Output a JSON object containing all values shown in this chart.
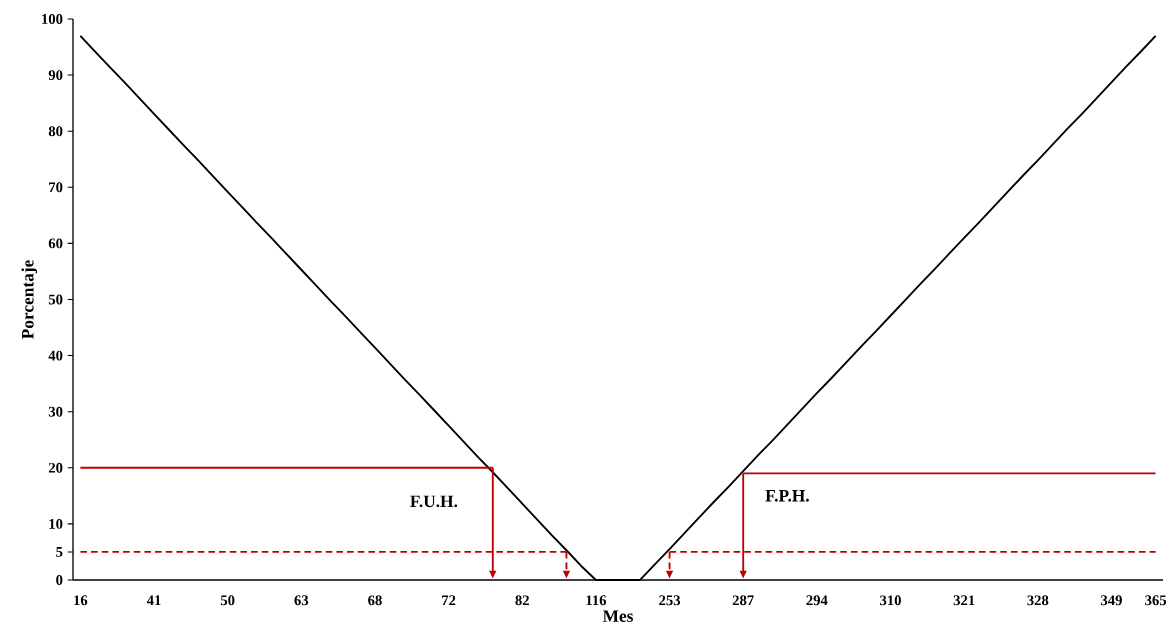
{
  "chart_data": {
    "type": "line",
    "xlabel": "Mes",
    "ylabel": "Porcentaje",
    "ylim": [
      0,
      100
    ],
    "yticks": [
      0,
      5,
      10,
      20,
      30,
      40,
      50,
      60,
      70,
      80,
      90,
      100
    ],
    "categories": [
      "16",
      null,
      null,
      null,
      null,
      "41",
      null,
      null,
      null,
      null,
      "50",
      null,
      null,
      null,
      null,
      "63",
      null,
      null,
      null,
      null,
      "68",
      null,
      null,
      null,
      null,
      "72",
      null,
      null,
      null,
      null,
      "82",
      null,
      null,
      null,
      null,
      "116",
      null,
      null,
      null,
      null,
      "253",
      null,
      null,
      null,
      null,
      "287",
      null,
      null,
      null,
      null,
      "294",
      null,
      null,
      null,
      null,
      "310",
      null,
      null,
      null,
      null,
      "321",
      null,
      null,
      null,
      null,
      "328",
      null,
      null,
      null,
      null,
      "349",
      null,
      null,
      "365"
    ],
    "series": [
      {
        "color": "#000000",
        "values": [
          97.0,
          94.2,
          91.4,
          88.7,
          85.9,
          83.1,
          80.3,
          77.5,
          74.8,
          72.0,
          69.2,
          66.4,
          63.6,
          60.9,
          58.1,
          55.3,
          52.5,
          49.7,
          47.0,
          44.2,
          41.4,
          38.6,
          35.8,
          33.1,
          30.3,
          27.5,
          24.7,
          21.9,
          19.2,
          16.4,
          13.6,
          10.8,
          8.0,
          5.3,
          2.5,
          0,
          0,
          0,
          0,
          2.8,
          5.5,
          8.3,
          11.1,
          13.9,
          16.6,
          19.4,
          22.2,
          24.9,
          27.7,
          30.5,
          33.3,
          36.0,
          38.8,
          41.6,
          44.3,
          47.1,
          49.9,
          52.7,
          55.4,
          58.2,
          61.0,
          63.7,
          66.5,
          69.3,
          72.1,
          74.8,
          77.6,
          80.4,
          83.1,
          85.9,
          88.7,
          91.5,
          94.2,
          97.0
        ]
      },
      {
        "color": "#c00000",
        "values": [
          20,
          20,
          20,
          20,
          20,
          20,
          20,
          20,
          20,
          20,
          20,
          20,
          20,
          20,
          20,
          20,
          20,
          20,
          20,
          20,
          20,
          20,
          20,
          20,
          20,
          20,
          20,
          20,
          20,
          null,
          null,
          null,
          null,
          null,
          null,
          null,
          null,
          null,
          null,
          null,
          null,
          null,
          null,
          null,
          null,
          null,
          null,
          null,
          null,
          null,
          null,
          null,
          null,
          null,
          null,
          null,
          null,
          null,
          null,
          null,
          null,
          null,
          null,
          null,
          null,
          null,
          null,
          null,
          null,
          null,
          null,
          null,
          null,
          null
        ]
      },
      {
        "color": "#c00000",
        "line_style": "dashed",
        "values": [
          5,
          5,
          5,
          5,
          5,
          5,
          5,
          5,
          5,
          5,
          5,
          5,
          5,
          5,
          5,
          5,
          5,
          5,
          5,
          5,
          5,
          5,
          5,
          5,
          5,
          5,
          5,
          5,
          5,
          5,
          5,
          5,
          5,
          5,
          null,
          null,
          null,
          null,
          null,
          null,
          null,
          null,
          null,
          null,
          null,
          null,
          null,
          null,
          null,
          null,
          null,
          null,
          null,
          null,
          null,
          null,
          null,
          null,
          null,
          null,
          null,
          null,
          null,
          null,
          null,
          null,
          null,
          null,
          null,
          null,
          null,
          null,
          null,
          null
        ]
      },
      {
        "color": "#c00000",
        "line_style": "dashed",
        "values": [
          null,
          null,
          null,
          null,
          null,
          null,
          null,
          null,
          null,
          null,
          null,
          null,
          null,
          null,
          null,
          null,
          null,
          null,
          null,
          null,
          null,
          null,
          null,
          null,
          null,
          null,
          null,
          null,
          null,
          null,
          null,
          null,
          null,
          null,
          null,
          null,
          null,
          null,
          null,
          null,
          5,
          5,
          5,
          5,
          5,
          5,
          5,
          5,
          5,
          5,
          5,
          5,
          5,
          5,
          5,
          5,
          5,
          5,
          5,
          5,
          5,
          5,
          5,
          5,
          5,
          5,
          5,
          5,
          5,
          5,
          5,
          5,
          5,
          5
        ]
      },
      {
        "color": "#c00000",
        "values": [
          null,
          null,
          null,
          null,
          null,
          null,
          null,
          null,
          null,
          null,
          null,
          null,
          null,
          null,
          null,
          null,
          null,
          null,
          null,
          null,
          null,
          null,
          null,
          null,
          null,
          null,
          null,
          null,
          null,
          null,
          null,
          null,
          null,
          null,
          null,
          null,
          null,
          null,
          null,
          null,
          null,
          null,
          null,
          null,
          null,
          19,
          19,
          19,
          19,
          19,
          19,
          19,
          19,
          19,
          19,
          19,
          19,
          19,
          19,
          19,
          19,
          19,
          19,
          19,
          19,
          19,
          19,
          19,
          19,
          19,
          19,
          19,
          19,
          19
        ]
      }
    ],
    "annotations": [
      "F.U.H.",
      "F.P.H."
    ],
    "grid": false,
    "marker": "none",
    "line_style": "solid"
  }
}
